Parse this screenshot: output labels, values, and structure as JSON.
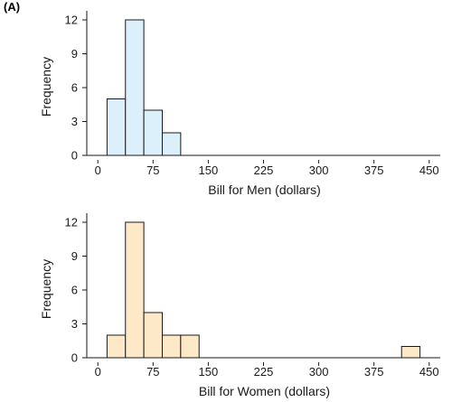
{
  "panel_label": "(A)",
  "colors": {
    "men_fill": "#dcf0fb",
    "women_fill": "#fde9c8",
    "stroke": "#1a1a1a"
  },
  "chart_data": [
    {
      "type": "bar",
      "xlabel": "Bill for Men (dollars)",
      "ylabel": "Frequency",
      "xticks": [
        0,
        75,
        150,
        225,
        300,
        375,
        450
      ],
      "yticks": [
        0,
        3,
        6,
        9,
        12
      ],
      "xlim": [
        -15,
        465
      ],
      "ylim": [
        0,
        12.8
      ],
      "bin_width": 25,
      "bins": [
        {
          "start": 12.5,
          "end": 37.5,
          "count": 5
        },
        {
          "start": 37.5,
          "end": 62.5,
          "count": 12
        },
        {
          "start": 62.5,
          "end": 87.5,
          "count": 4
        },
        {
          "start": 87.5,
          "end": 112.5,
          "count": 2
        }
      ]
    },
    {
      "type": "bar",
      "xlabel": "Bill for Women (dollars)",
      "ylabel": "Frequency",
      "xticks": [
        0,
        75,
        150,
        225,
        300,
        375,
        450
      ],
      "yticks": [
        0,
        3,
        6,
        9,
        12
      ],
      "xlim": [
        -15,
        465
      ],
      "ylim": [
        0,
        12.8
      ],
      "bin_width": 25,
      "bins": [
        {
          "start": 12.5,
          "end": 37.5,
          "count": 2
        },
        {
          "start": 37.5,
          "end": 62.5,
          "count": 12
        },
        {
          "start": 62.5,
          "end": 87.5,
          "count": 4
        },
        {
          "start": 87.5,
          "end": 112.5,
          "count": 2
        },
        {
          "start": 112.5,
          "end": 137.5,
          "count": 2
        },
        {
          "start": 412.5,
          "end": 437.5,
          "count": 1
        }
      ]
    }
  ]
}
